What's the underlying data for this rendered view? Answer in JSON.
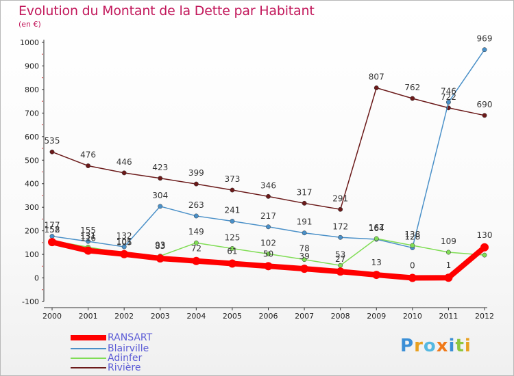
{
  "header": {
    "title": "Evolution du Montant de la Dette par Habitant",
    "subtitle": "(en €)"
  },
  "logo": {
    "text": "Proxiti"
  },
  "chart_data": {
    "type": "line",
    "title": "Evolution du Montant de la Dette par Habitant",
    "ylabel": "(en €)",
    "xlabel": "",
    "x": [
      "2000",
      "2001",
      "2002",
      "2003",
      "2004",
      "2005",
      "2006",
      "2007",
      "2008",
      "2009",
      "2010",
      "2011",
      "2012"
    ],
    "ylim": [
      -100,
      1000
    ],
    "yticks": [
      -100,
      0,
      100,
      200,
      300,
      400,
      500,
      600,
      700,
      800,
      900,
      1000
    ],
    "grid": false,
    "legend_position": "bottom-left",
    "series": [
      {
        "name": "RANSART",
        "color": "#ff0000",
        "values": [
          152,
          116,
          101,
          83,
          72,
          61,
          50,
          39,
          27,
          13,
          0,
          1,
          130
        ],
        "labels": [
          true,
          true,
          true,
          true,
          true,
          true,
          true,
          true,
          true,
          true,
          true,
          true,
          true
        ]
      },
      {
        "name": "Blairville",
        "color": "#4a90c8",
        "values": [
          177,
          155,
          132,
          304,
          263,
          241,
          217,
          191,
          172,
          164,
          128,
          746,
          969
        ],
        "labels": [
          true,
          true,
          true,
          true,
          true,
          true,
          true,
          true,
          true,
          true,
          true,
          true,
          true
        ]
      },
      {
        "name": "Adinfer",
        "color": "#80dd55",
        "values": [
          158,
          131,
          105,
          93,
          149,
          125,
          102,
          78,
          53,
          167,
          138,
          109,
          97
        ],
        "labels": [
          true,
          true,
          true,
          true,
          true,
          true,
          true,
          true,
          true,
          true,
          true,
          true,
          false
        ]
      },
      {
        "name": "Rivière",
        "color": "#6b1a1a",
        "values": [
          535,
          476,
          446,
          423,
          399,
          373,
          346,
          317,
          291,
          807,
          762,
          722,
          690
        ],
        "labels": [
          true,
          true,
          true,
          true,
          true,
          true,
          true,
          true,
          true,
          true,
          true,
          true,
          true
        ]
      }
    ]
  }
}
